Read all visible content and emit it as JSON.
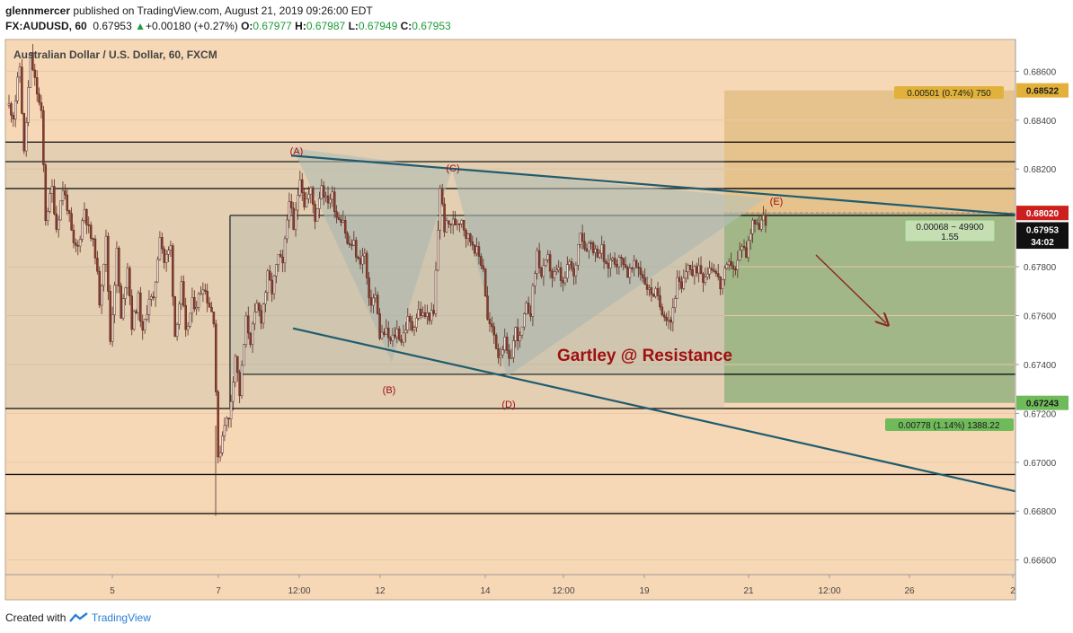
{
  "header": {
    "publisher": "glennmercer",
    "published_text": "published on TradingView.com, August 21, 2019 09:26:00 EDT",
    "symbol": "FX:AUDUSD, 60",
    "last": "0.67953",
    "change": "+0.00180 (+0.27%)",
    "o_label": "O:",
    "o": "0.67977",
    "h_label": "H:",
    "h": "0.67987",
    "l_label": "L:",
    "l": "0.67949",
    "c_label": "C:",
    "c": "0.67953"
  },
  "footer": {
    "created_with": "Created with",
    "brand": "TradingView"
  },
  "colors": {
    "background": "#f7d8b6",
    "candle_up": "#f0e8e0",
    "candle_down": "#8a3b2c",
    "trendline": "#1f5c6e",
    "target_zone": "#e3c086",
    "stop_zone": "#8eb07c",
    "pattern_fill": "#b8c1b6",
    "annotation_red": "#a01010",
    "current_price_tag": "#cc1f1f"
  },
  "chart_data": {
    "type": "candlestick",
    "title": "Australian Dollar / U.S. Dollar, 60, FXCM",
    "x_tick_labels": [
      "5",
      "7",
      "12:00",
      "12",
      "14",
      "12:00",
      "19",
      "21",
      "12:00",
      "26",
      "2"
    ],
    "y_tick_labels": [
      "0.68600",
      "0.68400",
      "0.68200",
      "0.67800",
      "0.67600",
      "0.67400",
      "0.67200",
      "0.67000",
      "0.66800",
      "0.66600"
    ],
    "ylim": [
      0.6654,
      0.6873
    ],
    "price_path": [
      [
        0.6846,
        0.6842
      ],
      [
        0.6862,
        0.6826
      ],
      [
        0.6866,
        0.6856
      ],
      [
        0.6842,
        0.68
      ],
      [
        0.6812,
        0.6796
      ],
      [
        0.6812,
        0.6805
      ],
      [
        0.6788,
        0.6788
      ],
      [
        0.6804,
        0.6795
      ],
      [
        0.6786,
        0.6766
      ],
      [
        0.6791,
        0.675
      ],
      [
        0.6786,
        0.6758
      ],
      [
        0.6781,
        0.6756
      ],
      [
        0.6767,
        0.6752
      ],
      [
        0.6768,
        0.6765
      ],
      [
        0.6794,
        0.6782
      ],
      [
        0.6788,
        0.6752
      ],
      [
        0.6772,
        0.6752
      ],
      [
        0.6765,
        0.6765
      ],
      [
        0.6773,
        0.6767
      ],
      [
        0.6759,
        0.67
      ],
      [
        0.6717,
        0.6717
      ],
      [
        0.6744,
        0.6728
      ],
      [
        0.6758,
        0.675
      ],
      [
        0.6764,
        0.6759
      ],
      [
        0.6776,
        0.677
      ],
      [
        0.6784,
        0.678
      ],
      [
        0.6809,
        0.6794
      ],
      [
        0.6818,
        0.6806
      ],
      [
        0.6811,
        0.68
      ],
      [
        0.6814,
        0.6807
      ],
      [
        0.6809,
        0.6801
      ],
      [
        0.68,
        0.6789
      ],
      [
        0.6789,
        0.6782
      ],
      [
        0.6785,
        0.6765
      ],
      [
        0.6768,
        0.6752
      ],
      [
        0.6753,
        0.6749
      ],
      [
        0.6754,
        0.675
      ],
      [
        0.6758,
        0.6755
      ],
      [
        0.6762,
        0.676
      ],
      [
        0.676,
        0.676
      ],
      [
        0.6813,
        0.6796
      ],
      [
        0.6798,
        0.6798
      ],
      [
        0.68,
        0.6793
      ],
      [
        0.679,
        0.6786
      ],
      [
        0.678,
        0.6758
      ],
      [
        0.6752,
        0.6744
      ],
      [
        0.6749,
        0.674
      ],
      [
        0.6754,
        0.675
      ],
      [
        0.6763,
        0.6762
      ],
      [
        0.6786,
        0.6776
      ],
      [
        0.6783,
        0.6776
      ],
      [
        0.6778,
        0.6772
      ],
      [
        0.6782,
        0.6775
      ],
      [
        0.6796,
        0.6788
      ],
      [
        0.679,
        0.6786
      ],
      [
        0.6787,
        0.6779
      ],
      [
        0.6784,
        0.6782
      ],
      [
        0.6783,
        0.6777
      ],
      [
        0.678,
        0.678
      ],
      [
        0.6774,
        0.677
      ],
      [
        0.6769,
        0.6764
      ],
      [
        0.676,
        0.6758
      ],
      [
        0.6774,
        0.677
      ],
      [
        0.6782,
        0.6776
      ],
      [
        0.6781,
        0.6776
      ],
      [
        0.678,
        0.678
      ],
      [
        0.6772,
        0.6777
      ],
      [
        0.6782,
        0.6778
      ],
      [
        0.679,
        0.6785
      ],
      [
        0.68,
        0.6796
      ],
      [
        0.68,
        0.6795
      ]
    ],
    "horizontal_levels": [
      0.6831,
      0.6823,
      0.6812,
      0.6801,
      0.6736,
      0.6722,
      0.6695,
      0.6679
    ],
    "trendlines": [
      {
        "name": "resistance",
        "from": [
          "Aug 12 00:00",
          0.6825
        ],
        "to": [
          "Aug 30",
          0.6801
        ]
      },
      {
        "name": "support",
        "from": [
          "Aug 12 00:00",
          0.6755
        ],
        "to": [
          "Aug 30",
          0.6688
        ]
      }
    ],
    "pattern_points": [
      {
        "label": "(A)",
        "price": 0.68285
      },
      {
        "label": "(B)",
        "price": 0.6741
      },
      {
        "label": "(C)",
        "price": 0.682
      },
      {
        "label": "(D)",
        "price": 0.6735
      },
      {
        "label": "(E)",
        "price": 0.6808
      }
    ],
    "pattern_label": "Gartley @ Resistance",
    "position": {
      "entry": 0.68021,
      "target": 0.67243,
      "stop": 0.68522,
      "target_label": "0.00778 (1.14%) 1388.22",
      "stop_label": "0.00501 (0.74%) 750",
      "entry_label": "0.00068 ~ 49900",
      "ratio": "1.55"
    },
    "price_tags": [
      {
        "label": "0.68522",
        "value": 0.68522,
        "color": "#e3b13a",
        "text_color": "#1a1a1a"
      },
      {
        "label": "0.68021",
        "value": 0.68021,
        "color": "#e3b13a",
        "text_color": "#1a1a1a"
      },
      {
        "label": "0.68020",
        "value": 0.6802,
        "color": "#cc1f1f",
        "text_color": "#ffffff"
      },
      {
        "label": "0.67953",
        "value": 0.67953,
        "color": "#111111",
        "text_color": "#ffffff"
      },
      {
        "label": "34:02",
        "value": 0.67903,
        "color": "#111111",
        "text_color": "#ffffff"
      },
      {
        "label": "0.67243",
        "value": 0.67243,
        "color": "#6fba5a",
        "text_color": "#1a1a1a"
      }
    ],
    "projection_arrow": {
      "direction": "down"
    }
  }
}
